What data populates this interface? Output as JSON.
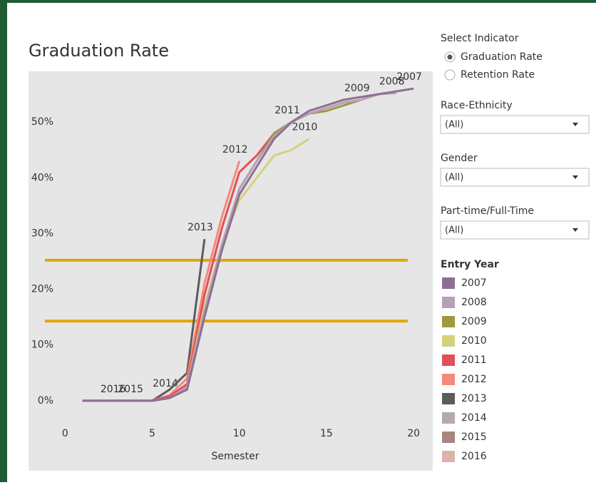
{
  "chart_data": {
    "type": "line",
    "title": "Graduation Rate",
    "x_label": "Semester",
    "x": [
      1,
      2,
      3,
      4,
      5,
      6,
      7,
      8,
      9,
      10,
      11,
      12,
      13,
      14,
      15,
      16,
      17,
      18,
      19,
      20
    ],
    "series": [
      {
        "name": "2007",
        "color": "#8e6f94",
        "values": [
          0,
          0,
          0,
          0,
          0,
          0.5,
          2,
          15,
          27,
          37,
          42,
          47,
          50,
          52,
          53,
          54,
          54.5,
          55,
          55.5,
          56
        ]
      },
      {
        "name": "2008",
        "color": "#b89fb8",
        "values": [
          0,
          0,
          0,
          0,
          0,
          0.5,
          2.5,
          16,
          28,
          38,
          43,
          47.5,
          50,
          51.5,
          52.5,
          53.5,
          54,
          55,
          55.2,
          null
        ]
      },
      {
        "name": "2009",
        "color": "#9a9a3e",
        "values": [
          0,
          0,
          0,
          0,
          0,
          0.5,
          2.5,
          16,
          28,
          38,
          43,
          48,
          50,
          51.5,
          52,
          53,
          54,
          null,
          null,
          null
        ]
      },
      {
        "name": "2010",
        "color": "#d4d17c",
        "values": [
          0,
          0,
          0,
          0,
          0,
          0.5,
          2.5,
          17,
          28,
          36,
          40,
          44,
          45,
          47,
          null,
          null,
          null,
          null,
          null,
          null
        ]
      },
      {
        "name": "2011",
        "color": "#e0505a",
        "values": [
          0,
          0,
          0,
          0,
          0,
          0.8,
          3,
          19,
          31,
          41,
          44,
          48,
          50,
          null,
          null,
          null,
          null,
          null,
          null,
          null
        ]
      },
      {
        "name": "2012",
        "color": "#f7897a",
        "values": [
          0,
          0,
          0,
          0,
          0,
          1,
          4,
          21,
          33,
          43,
          null,
          null,
          null,
          null,
          null,
          null,
          null,
          null,
          null,
          null
        ]
      },
      {
        "name": "2013",
        "color": "#5c5c5c",
        "values": [
          0,
          0,
          0,
          0,
          0,
          2,
          5,
          29,
          null,
          null,
          null,
          null,
          null,
          null,
          null,
          null,
          null,
          null,
          null,
          null
        ]
      },
      {
        "name": "2014",
        "color": "#b4aaa8",
        "values": [
          0,
          0,
          0,
          0,
          0,
          1,
          null,
          null,
          null,
          null,
          null,
          null,
          null,
          null,
          null,
          null,
          null,
          null,
          null,
          null
        ]
      },
      {
        "name": "2015",
        "color": "#a8857e",
        "values": [
          0,
          0,
          0,
          0,
          null,
          null,
          null,
          null,
          null,
          null,
          null,
          null,
          null,
          null,
          null,
          null,
          null,
          null,
          null,
          null
        ]
      },
      {
        "name": "2016",
        "color": "#dcb3ab",
        "values": [
          0,
          0,
          0,
          null,
          null,
          null,
          null,
          null,
          null,
          null,
          null,
          null,
          null,
          null,
          null,
          null,
          null,
          null,
          null,
          null
        ]
      }
    ],
    "reference_lines": [
      25.2,
      14.3
    ],
    "reference_color": "#e0a800",
    "xlim": [
      -2.1,
      21.1
    ],
    "xticks": [
      0,
      5,
      10,
      15,
      20
    ],
    "ylim": [
      -3.6,
      59.1
    ],
    "yticks": [
      {
        "value": 0,
        "label": "0%"
      },
      {
        "value": 10,
        "label": "10%"
      },
      {
        "value": 20,
        "label": "20%"
      },
      {
        "value": 30,
        "label": "30%"
      },
      {
        "value": 40,
        "label": "40%"
      },
      {
        "value": 50,
        "label": "50%"
      }
    ],
    "grid": false,
    "legend_title": "Entry Year"
  },
  "controls": {
    "indicator": {
      "title": "Select Indicator",
      "options": [
        "Graduation Rate",
        "Retention Rate"
      ]
    },
    "filters": [
      {
        "title": "Race-Ethnicity",
        "value": "(All)"
      },
      {
        "title": "Gender",
        "value": "(All)"
      },
      {
        "title": "Part-time/Full-Time",
        "value": "(All)"
      }
    ]
  }
}
